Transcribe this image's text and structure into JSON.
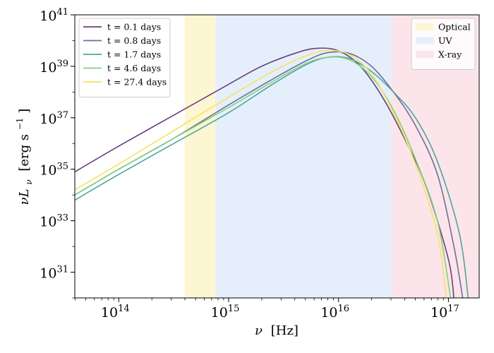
{
  "chart_data": {
    "type": "line",
    "title": "",
    "xlabel_main": "ν",
    "xlabel_unit": "[Hz]",
    "ylabel_main": "νL",
    "ylabel_sub": "ν",
    "ylabel_unit_pre": "[erg s",
    "ylabel_unit_exp": "−1",
    "ylabel_unit_post": "]",
    "xscale": "log",
    "yscale": "log",
    "xlim_log10": [
      13.6,
      17.28
    ],
    "ylim_log10": [
      30.0,
      41.0
    ],
    "grid": false,
    "x_ticks": [
      {
        "log10": 14,
        "base": "10",
        "exp": "14"
      },
      {
        "log10": 15,
        "base": "10",
        "exp": "15"
      },
      {
        "log10": 16,
        "base": "10",
        "exp": "16"
      },
      {
        "log10": 17,
        "base": "10",
        "exp": "17"
      }
    ],
    "y_ticks": [
      {
        "log10": 31,
        "base": "10",
        "exp": "31"
      },
      {
        "log10": 33,
        "base": "10",
        "exp": "33"
      },
      {
        "log10": 35,
        "base": "10",
        "exp": "35"
      },
      {
        "log10": 37,
        "base": "10",
        "exp": "37"
      },
      {
        "log10": 39,
        "base": "10",
        "exp": "39"
      },
      {
        "log10": 41,
        "base": "10",
        "exp": "41"
      }
    ],
    "bands": [
      {
        "name": "Optical",
        "range_log10": [
          14.6,
          14.88
        ],
        "color": "#fdf6d2"
      },
      {
        "name": "UV",
        "range_log10": [
          14.88,
          16.48
        ],
        "color": "#e5effc"
      },
      {
        "name": "X-ray",
        "range_log10": [
          16.48,
          17.28
        ],
        "color": "#fce5ea"
      }
    ],
    "series": [
      {
        "name": "t = 0.1 days",
        "color": "#6b3f80",
        "points_log10": [
          [
            13.6,
            34.9
          ],
          [
            14.0,
            35.9
          ],
          [
            14.5,
            37.1
          ],
          [
            15.0,
            38.3
          ],
          [
            15.3,
            39.0
          ],
          [
            15.6,
            39.5
          ],
          [
            15.8,
            39.7
          ],
          [
            16.0,
            39.6
          ],
          [
            16.2,
            39.0
          ],
          [
            16.4,
            37.8
          ],
          [
            16.6,
            36.2
          ],
          [
            16.8,
            34.3
          ],
          [
            17.0,
            31.5
          ],
          [
            17.05,
            30.0
          ]
        ]
      },
      {
        "name": "t = 0.8 days",
        "color": "#716d9c",
        "points_log10": [
          [
            13.6,
            34.0
          ],
          [
            14.0,
            35.0
          ],
          [
            14.5,
            36.2
          ],
          [
            15.0,
            37.5
          ],
          [
            15.4,
            38.5
          ],
          [
            15.7,
            39.2
          ],
          [
            15.9,
            39.53
          ],
          [
            16.1,
            39.5
          ],
          [
            16.3,
            39.0
          ],
          [
            16.5,
            38.0
          ],
          [
            16.7,
            36.7
          ],
          [
            16.9,
            34.8
          ],
          [
            17.05,
            32.0
          ],
          [
            17.13,
            30.0
          ]
        ]
      },
      {
        "name": "t = 1.7 days",
        "color": "#4fa49e",
        "points_log10": [
          [
            13.6,
            33.8
          ],
          [
            14.0,
            34.8
          ],
          [
            14.5,
            36.0
          ],
          [
            15.0,
            37.2
          ],
          [
            15.4,
            38.3
          ],
          [
            15.7,
            39.05
          ],
          [
            15.9,
            39.35
          ],
          [
            16.1,
            39.3
          ],
          [
            16.3,
            38.8
          ],
          [
            16.5,
            38.0
          ],
          [
            16.7,
            37.0
          ],
          [
            16.9,
            35.3
          ],
          [
            17.1,
            32.5
          ],
          [
            17.18,
            30.0
          ]
        ]
      },
      {
        "name": "t = 4.6 days",
        "color": "#80d27c",
        "points_log10": [
          [
            13.6,
            34.0
          ],
          [
            14.0,
            35.0
          ],
          [
            14.5,
            36.2
          ],
          [
            15.0,
            37.4
          ],
          [
            15.4,
            38.4
          ],
          [
            15.7,
            39.1
          ],
          [
            15.9,
            39.35
          ],
          [
            16.1,
            39.25
          ],
          [
            16.3,
            38.6
          ],
          [
            16.5,
            37.3
          ],
          [
            16.7,
            35.4
          ],
          [
            16.9,
            33.0
          ],
          [
            17.02,
            30.0
          ]
        ]
      },
      {
        "name": "t = 27.4 days",
        "color": "#f7e35e",
        "points_log10": [
          [
            13.6,
            34.2
          ],
          [
            14.0,
            35.2
          ],
          [
            14.5,
            36.5
          ],
          [
            15.0,
            37.8
          ],
          [
            15.4,
            38.8
          ],
          [
            15.7,
            39.4
          ],
          [
            15.9,
            39.62
          ],
          [
            16.1,
            39.45
          ],
          [
            16.3,
            38.7
          ],
          [
            16.5,
            37.2
          ],
          [
            16.7,
            35.2
          ],
          [
            16.9,
            32.5
          ],
          [
            16.98,
            30.0
          ]
        ]
      }
    ]
  }
}
